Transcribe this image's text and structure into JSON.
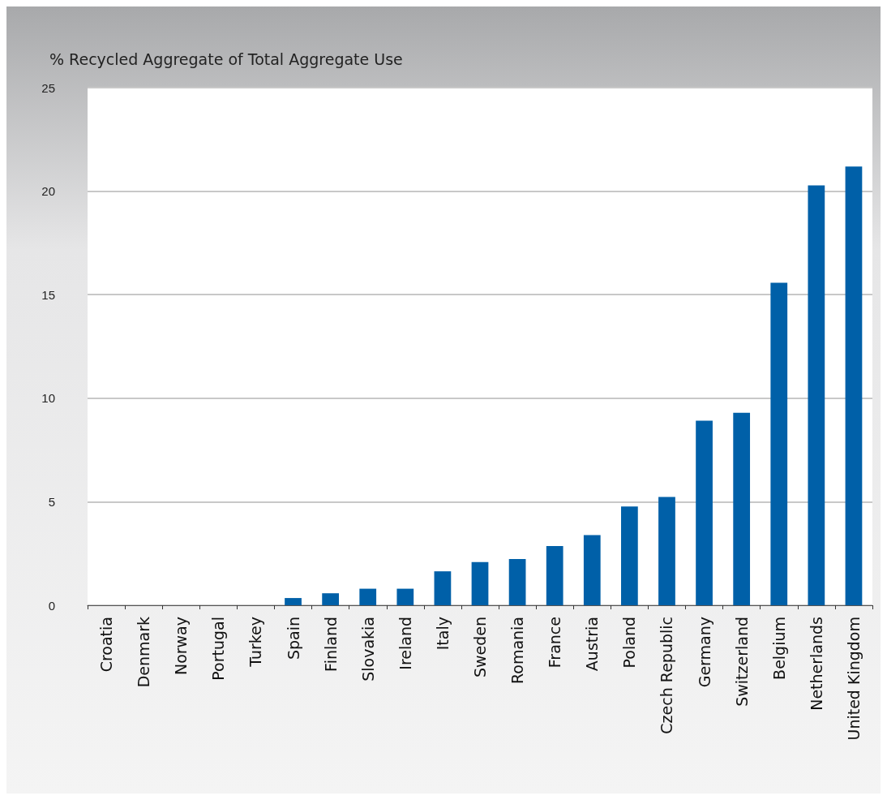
{
  "chart_data": {
    "type": "bar",
    "title": "% Recycled Aggregate of Total Aggregate Use",
    "categories": [
      "Croatia",
      "Denmark",
      "Norway",
      "Portugal",
      "Turkey",
      "Spain",
      "Finland",
      "Slovakia",
      "Ireland",
      "Italy",
      "Sweden",
      "Romania",
      "France",
      "Austria",
      "Poland",
      "Czech Republic",
      "Germany",
      "Switzerland",
      "Belgium",
      "Netherlands",
      "United Kingdom"
    ],
    "values": [
      0,
      0,
      0,
      0,
      0,
      0.35,
      0.58,
      0.8,
      0.8,
      1.64,
      2.09,
      2.23,
      2.86,
      3.39,
      4.77,
      5.23,
      8.91,
      9.3,
      15.58,
      20.28,
      21.19
    ],
    "color": "#0060a8",
    "ylim": [
      0,
      25
    ],
    "yticks": [
      0,
      5,
      10,
      15,
      20,
      25
    ],
    "grid": "y"
  }
}
